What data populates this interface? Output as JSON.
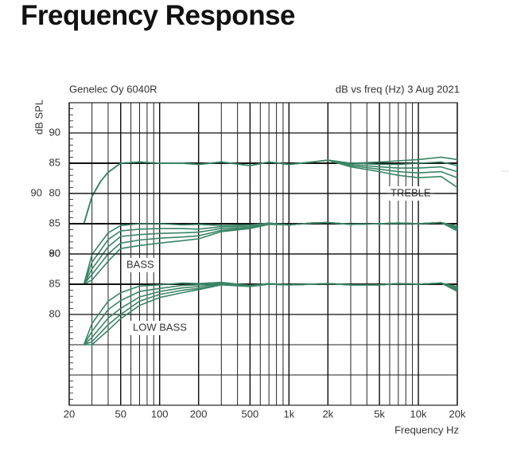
{
  "title": "Frequency Response",
  "chart_data": [
    {
      "type": "line",
      "header_left": "Genelec Oy 6040R",
      "header_right": "dB vs freq (Hz) 3 Aug 2021",
      "ylabel": "dB SPL",
      "xlabel": "Frequency Hz",
      "annotation": "TREBLE",
      "xscale": "log",
      "xlim": [
        20,
        20000
      ],
      "xticks": [
        20,
        50,
        100,
        200,
        500,
        {
          "value": 1000,
          "label": "1k"
        },
        {
          "value": 2000,
          "label": "2k"
        },
        {
          "value": 5000,
          "label": "5k"
        },
        {
          "value": 10000,
          "label": "10k"
        },
        {
          "value": 20000,
          "label": "20k"
        }
      ],
      "ylim": [
        45,
        95
      ],
      "yticks": [
        90,
        85,
        80
      ],
      "grid": true,
      "x": [
        26,
        30,
        35,
        40,
        50,
        70,
        100,
        150,
        200,
        300,
        500,
        700,
        1000,
        1500,
        2000,
        3000,
        5000,
        7000,
        10000,
        15000,
        20000
      ],
      "series": [
        {
          "color": "#3b8566",
          "values": [
            75,
            79.5,
            82,
            83.5,
            85,
            85.2,
            85,
            85,
            84.8,
            85.2,
            84.6,
            85.2,
            84.8,
            85.2,
            85.5,
            85,
            85.2,
            85.4,
            85.6,
            86,
            85.6
          ]
        },
        {
          "color": "#3b8566",
          "values": [
            75,
            79.5,
            82,
            83.5,
            85,
            85.2,
            85,
            85,
            84.8,
            85.2,
            84.6,
            85.2,
            84.8,
            85.2,
            85.5,
            85,
            84.8,
            84.8,
            85,
            85.2,
            84.6
          ]
        },
        {
          "color": "#3b8566",
          "values": [
            75,
            79.5,
            82,
            83.5,
            85,
            85.2,
            85,
            85,
            84.8,
            85.2,
            84.6,
            85.2,
            84.8,
            85.2,
            85.5,
            84.8,
            84.4,
            84.2,
            84.2,
            84.4,
            83.6
          ]
        },
        {
          "color": "#3b8566",
          "values": [
            75,
            79.5,
            82,
            83.5,
            85,
            85.2,
            85,
            85,
            84.8,
            85.2,
            84.6,
            85.2,
            84.8,
            85.2,
            85.5,
            84.6,
            84,
            83.6,
            83.4,
            83.6,
            82.6
          ]
        },
        {
          "color": "#3b8566",
          "values": [
            75,
            79.5,
            82,
            83.5,
            85,
            85.2,
            85,
            85,
            84.8,
            85.2,
            84.6,
            85.2,
            84.8,
            85.2,
            85.5,
            84.4,
            83.6,
            83,
            82.6,
            82.8,
            81
          ]
        }
      ]
    },
    {
      "type": "line",
      "annotation": "BASS",
      "xscale": "log",
      "xlim": [
        20,
        20000
      ],
      "ylim": [
        55,
        105
      ],
      "yticks": [
        90,
        85,
        80
      ],
      "x": [
        26,
        30,
        40,
        50,
        70,
        100,
        150,
        200,
        300,
        500,
        700,
        1000,
        1500,
        2000,
        3000,
        5000,
        7000,
        10000,
        15000,
        20000
      ],
      "series": [
        {
          "color": "#3b8566",
          "values": [
            75,
            79.9,
            83.5,
            84.7,
            85,
            85,
            84.8,
            84.9,
            84.7,
            84.8,
            85.1,
            84.8,
            85.1,
            85.2,
            84.9,
            85,
            85.1,
            85,
            85.2,
            84.6
          ]
        },
        {
          "color": "#3b8566",
          "values": [
            75,
            78.6,
            82.4,
            83.8,
            84.1,
            84.2,
            84.2,
            84.1,
            84.5,
            84.6,
            85.1,
            84.8,
            85.1,
            85.2,
            84.9,
            85,
            85.1,
            85,
            85.2,
            84.4
          ]
        },
        {
          "color": "#3b8566",
          "values": [
            75,
            77.5,
            81.2,
            82.9,
            83.2,
            83.4,
            83.5,
            83.6,
            84.2,
            84.4,
            85,
            84.8,
            85.1,
            85.2,
            84.9,
            85,
            85.1,
            85,
            85.2,
            84.2
          ]
        },
        {
          "color": "#3b8566",
          "values": [
            75,
            76.6,
            80,
            81.8,
            82.3,
            82.6,
            82.8,
            83,
            83.9,
            84.3,
            85,
            84.8,
            85.1,
            85.2,
            84.9,
            85,
            85.1,
            85,
            85.2,
            84
          ]
        },
        {
          "color": "#3b8566",
          "values": [
            75,
            75.7,
            78.8,
            80.9,
            81.4,
            81.8,
            82.2,
            82.5,
            83.7,
            84.2,
            84.9,
            84.8,
            85.1,
            85.2,
            84.9,
            85,
            85.1,
            85,
            85.2,
            83.8
          ]
        }
      ]
    },
    {
      "type": "line",
      "annotation": "LOW BASS",
      "xscale": "log",
      "xlim": [
        20,
        20000
      ],
      "ylim": [
        65,
        115
      ],
      "yticks": [
        90,
        85,
        80
      ],
      "x": [
        26,
        30,
        40,
        50,
        70,
        100,
        150,
        200,
        300,
        500,
        700,
        1000,
        1500,
        2000,
        3000,
        5000,
        7000,
        10000,
        15000,
        20000
      ],
      "series": [
        {
          "color": "#3b8566",
          "values": [
            75,
            78.5,
            82.2,
            83.6,
            84.7,
            84.9,
            85.2,
            85.1,
            85.3,
            84.8,
            85.1,
            84.9,
            85,
            85.1,
            84.9,
            84.9,
            85.1,
            85,
            85.2,
            84.6
          ]
        },
        {
          "color": "#3b8566",
          "values": [
            75,
            77.2,
            80.8,
            82.3,
            83.8,
            84.3,
            84.8,
            84.9,
            85.2,
            84.8,
            85.1,
            84.9,
            85,
            85.1,
            84.9,
            84.9,
            85.1,
            85,
            85.2,
            84.4
          ]
        },
        {
          "color": "#3b8566",
          "values": [
            75,
            76.2,
            79.4,
            81,
            82.9,
            83.8,
            84.4,
            84.6,
            85.1,
            84.7,
            85,
            84.9,
            85,
            85.1,
            84.9,
            84.9,
            85.1,
            85,
            85.2,
            84.2
          ]
        },
        {
          "color": "#3b8566",
          "values": [
            75,
            75.5,
            78.3,
            80,
            82.2,
            83.3,
            84,
            84.3,
            85,
            84.7,
            85,
            84.9,
            85,
            85.1,
            84.9,
            84.9,
            85.1,
            85,
            85.2,
            84
          ]
        },
        {
          "color": "#3b8566",
          "values": [
            75,
            75,
            77.4,
            79.3,
            81.5,
            82.8,
            83.6,
            84.1,
            84.9,
            84.6,
            85,
            84.9,
            85,
            85.1,
            84.9,
            84.9,
            85.1,
            85,
            85.2,
            83.8
          ]
        }
      ]
    }
  ]
}
